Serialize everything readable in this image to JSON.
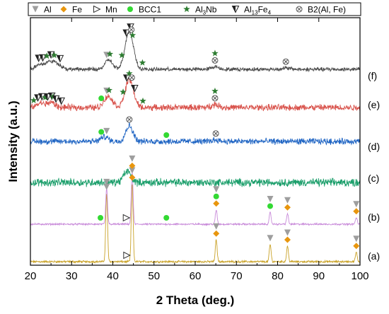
{
  "chart_data": {
    "type": "line",
    "title": "",
    "xlabel": "2 Theta (deg.)",
    "ylabel": "Intensity (a.u.)",
    "xlim": [
      20,
      100
    ],
    "x_ticks": [
      "20",
      "30",
      "40",
      "50",
      "60",
      "70",
      "80",
      "90",
      "100"
    ],
    "x_tick_values": [
      20,
      30,
      40,
      50,
      60,
      70,
      80,
      90,
      100
    ],
    "y_ticks": [],
    "grid": false,
    "legend_position": "top",
    "legend": [
      {
        "key": "al",
        "label": "Al",
        "marker": "triangle-down",
        "color": "#9e9e9e"
      },
      {
        "key": "fe",
        "label": "Fe",
        "marker": "diamond",
        "color": "#e8960e"
      },
      {
        "key": "mn",
        "label": "Mn",
        "marker": "open-triangle-right",
        "color": "#333333"
      },
      {
        "key": "bcc1",
        "label": "BCC1",
        "marker": "circle",
        "color": "#33d933"
      },
      {
        "key": "al3nb",
        "label": "Al",
        "sub": "3",
        "tail": "Nb",
        "marker": "star",
        "color": "#2e7d32"
      },
      {
        "key": "al13fe4",
        "label": "Al",
        "sub": "13",
        "tail": "Fe",
        "sub2": "4",
        "marker": "half-triangle",
        "color": "#222222"
      },
      {
        "key": "b2",
        "label": "B2(Al, Fe)",
        "marker": "circled-x",
        "color": "#555555"
      }
    ],
    "series": [
      {
        "name": "(a)",
        "color": "#c9a227",
        "noise": 0.02,
        "peaks": [
          [
            38.5,
            0.88
          ],
          [
            44.7,
            1.0
          ],
          [
            65.1,
            0.28
          ],
          [
            78.2,
            0.22
          ],
          [
            82.4,
            0.2
          ],
          [
            99.1,
            0.12
          ]
        ],
        "markers": [
          {
            "type": "al",
            "x": 38.5
          },
          {
            "type": "fe",
            "x": 44.7
          },
          {
            "type": "al",
            "x": 44.7
          },
          {
            "type": "mn",
            "x": 43.4
          },
          {
            "type": "fe",
            "x": 65.1
          },
          {
            "type": "al",
            "x": 65.1
          },
          {
            "type": "al",
            "x": 78.2
          },
          {
            "type": "fe",
            "x": 82.4
          },
          {
            "type": "al",
            "x": 82.4
          },
          {
            "type": "fe",
            "x": 99.1
          },
          {
            "type": "al",
            "x": 99.1
          }
        ]
      },
      {
        "name": "(b)",
        "color": "#c88ad9",
        "noise": 0.02,
        "peaks": [
          [
            38.5,
            0.55
          ],
          [
            44.7,
            0.8
          ],
          [
            65.1,
            0.22
          ],
          [
            78.2,
            0.18
          ],
          [
            82.4,
            0.16
          ],
          [
            99.1,
            0.1
          ]
        ],
        "markers": [
          {
            "type": "bcc1",
            "x": 37.0
          },
          {
            "type": "al",
            "x": 38.5
          },
          {
            "type": "mn",
            "x": 43.3
          },
          {
            "type": "fe",
            "x": 44.7
          },
          {
            "type": "al",
            "x": 44.7
          },
          {
            "type": "bcc1",
            "x": 53.0
          },
          {
            "type": "fe",
            "x": 65.1
          },
          {
            "type": "bcc1",
            "x": 65.1
          },
          {
            "type": "al",
            "x": 65.1
          },
          {
            "type": "bcc1",
            "x": 78.2
          },
          {
            "type": "al",
            "x": 78.2
          },
          {
            "type": "fe",
            "x": 82.4
          },
          {
            "type": "al",
            "x": 82.4
          },
          {
            "type": "fe",
            "x": 99.1
          },
          {
            "type": "al",
            "x": 99.1
          }
        ]
      },
      {
        "name": "(c)",
        "color": "#1a9e6a",
        "noise": 0.16,
        "peaks": [
          [
            43.5,
            0.3
          ]
        ],
        "markers": []
      },
      {
        "name": "(d)",
        "color": "#2166c4",
        "noise": 0.12,
        "peaks": [
          [
            38.0,
            0.12
          ],
          [
            44.0,
            0.4
          ],
          [
            65.0,
            0.04
          ]
        ],
        "markers": [
          {
            "type": "bcc1",
            "x": 37.2
          },
          {
            "type": "al",
            "x": 38.5
          },
          {
            "type": "b2",
            "x": 44.0
          },
          {
            "type": "bcc1",
            "x": 53.0
          },
          {
            "type": "b2",
            "x": 65.0
          }
        ]
      },
      {
        "name": "(e)",
        "color": "#d9544d",
        "noise": 0.13,
        "peaks": [
          [
            22.5,
            0.12
          ],
          [
            25.0,
            0.14
          ],
          [
            38.5,
            0.2
          ],
          [
            39.5,
            0.15
          ],
          [
            43.6,
            0.45
          ],
          [
            44.5,
            0.4
          ],
          [
            64.8,
            0.08
          ]
        ],
        "markers": [
          {
            "type": "al3nb",
            "x": 20.8
          },
          {
            "type": "al13fe4",
            "x": 21.8
          },
          {
            "type": "al13fe4",
            "x": 22.8
          },
          {
            "type": "al3nb",
            "x": 23.6
          },
          {
            "type": "al13fe4",
            "x": 24.2
          },
          {
            "type": "al13fe4",
            "x": 25.2
          },
          {
            "type": "al3nb",
            "x": 25.5
          },
          {
            "type": "al13fe4",
            "x": 26.2
          },
          {
            "type": "al13fe4",
            "x": 27.5
          },
          {
            "type": "bcc1",
            "x": 37.2
          },
          {
            "type": "al",
            "x": 38.5
          },
          {
            "type": "al3nb",
            "x": 39.1
          },
          {
            "type": "al3nb",
            "x": 42.5
          },
          {
            "type": "al13fe4",
            "x": 43.4
          },
          {
            "type": "al3nb",
            "x": 44.0
          },
          {
            "type": "b2",
            "x": 44.6
          },
          {
            "type": "al13fe4",
            "x": 45.3
          },
          {
            "type": "al3nb",
            "x": 47.3
          },
          {
            "type": "b2",
            "x": 64.8
          },
          {
            "type": "al3nb",
            "x": 64.8
          }
        ]
      },
      {
        "name": "(f)",
        "color": "#4a4a4a",
        "noise": 0.07,
        "peaks": [
          [
            22.0,
            0.1
          ],
          [
            24.0,
            0.12
          ],
          [
            25.5,
            0.14
          ],
          [
            27.0,
            0.08
          ],
          [
            39.0,
            0.22
          ],
          [
            43.6,
            0.55
          ],
          [
            44.5,
            0.45
          ],
          [
            64.8,
            0.06
          ],
          [
            82.0,
            0.03
          ]
        ],
        "markers": [
          {
            "type": "al13fe4",
            "x": 22.0
          },
          {
            "type": "al13fe4",
            "x": 23.0
          },
          {
            "type": "al3nb",
            "x": 24.0
          },
          {
            "type": "al13fe4",
            "x": 25.0
          },
          {
            "type": "al3nb",
            "x": 25.8
          },
          {
            "type": "al13fe4",
            "x": 27.2
          },
          {
            "type": "al",
            "x": 38.5
          },
          {
            "type": "al3nb",
            "x": 39.3
          },
          {
            "type": "al3nb",
            "x": 42.2
          },
          {
            "type": "al13fe4",
            "x": 43.3
          },
          {
            "type": "al13fe4",
            "x": 44.3
          },
          {
            "type": "b2",
            "x": 44.5
          },
          {
            "type": "al3nb",
            "x": 44.8
          },
          {
            "type": "al3nb",
            "x": 47.2
          },
          {
            "type": "b2",
            "x": 64.8
          },
          {
            "type": "al3nb",
            "x": 64.8
          },
          {
            "type": "b2",
            "x": 82.0
          }
        ]
      }
    ]
  }
}
